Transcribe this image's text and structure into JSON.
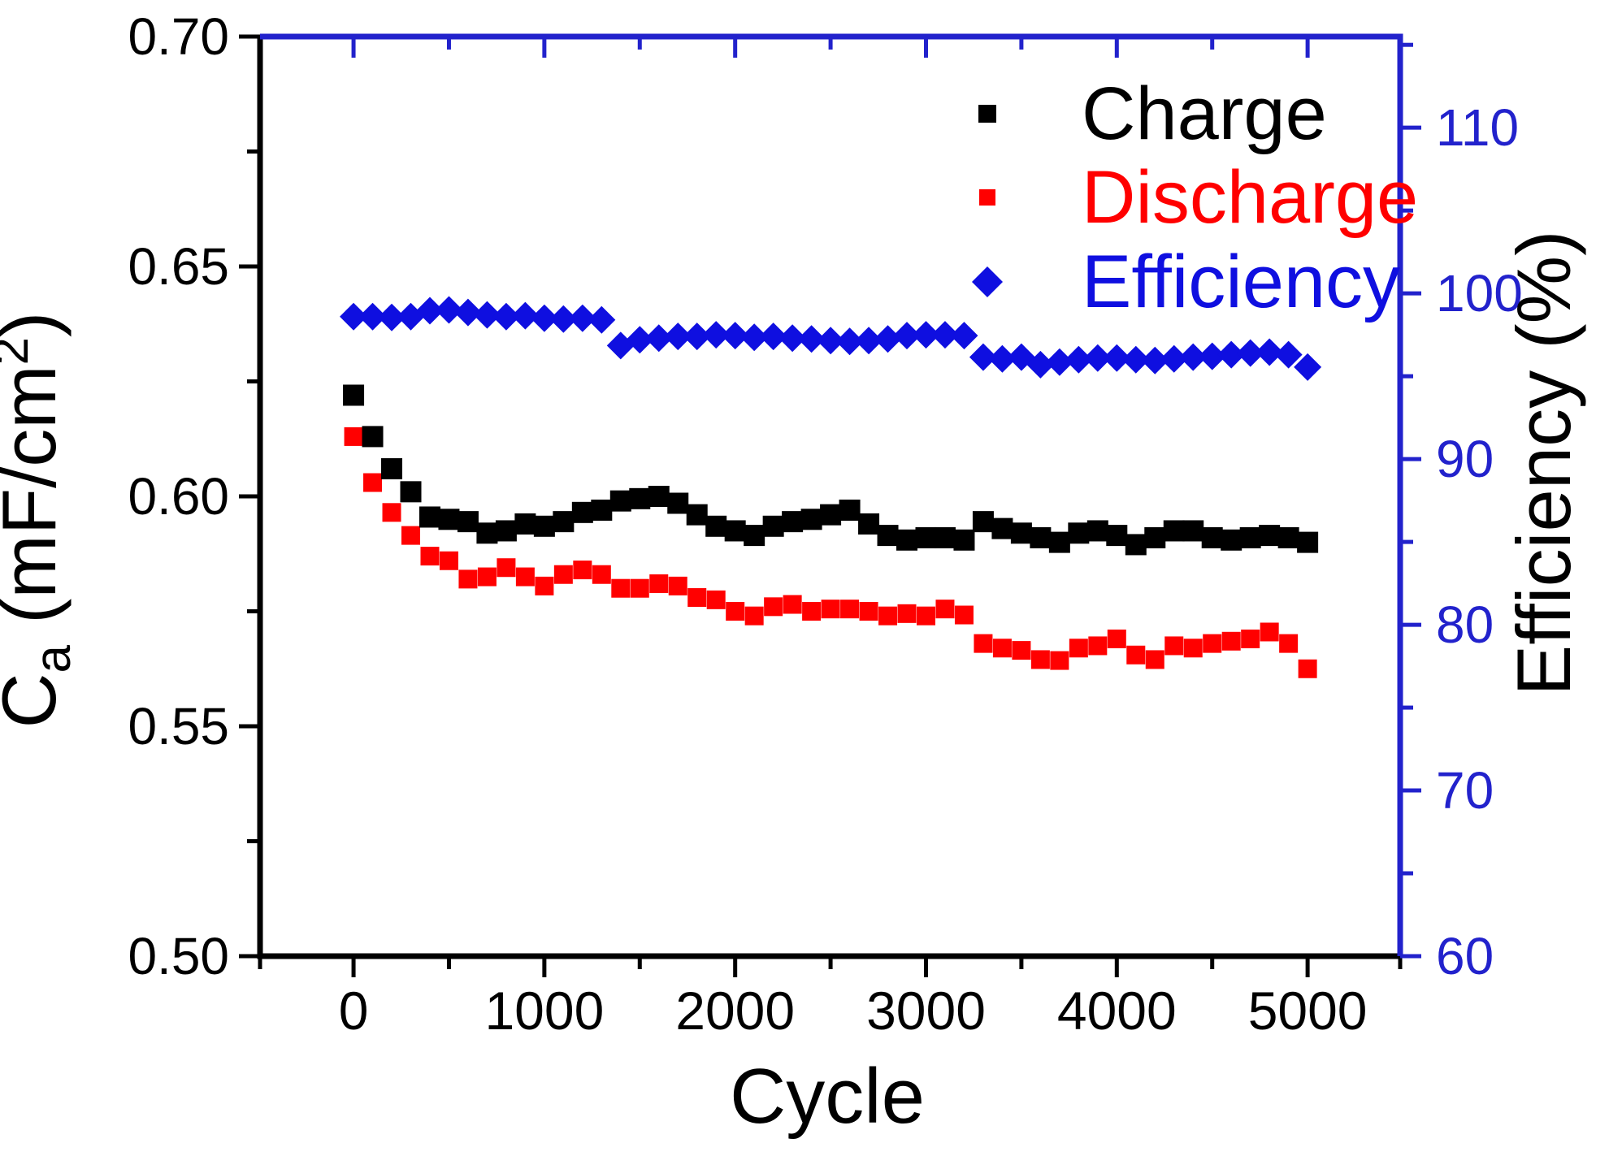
{
  "page": {
    "background": "#ffffff"
  },
  "legend": {
    "position": "top-right",
    "items": [
      {
        "label": "Charge",
        "color": "#000000",
        "marker": "square"
      },
      {
        "label": "Discharge",
        "color": "#ff0000",
        "marker": "square"
      },
      {
        "label": "Efficiency",
        "color": "#0f0fe0",
        "marker": "diamond"
      }
    ]
  },
  "chart_data": {
    "type": "scatter",
    "title": "",
    "xlabel": "Cycle",
    "ylabel_left": "Ca (mF/cm2)",
    "ylabel_left_parts": {
      "pre": "C",
      "sub": "a",
      "mid": " (mF/cm",
      "sup": "2",
      "post": ")"
    },
    "ylabel_right": "Efficiency (%)",
    "grid": false,
    "xlim": [
      -490,
      5485
    ],
    "ylim_left": [
      0.5,
      0.7
    ],
    "ylim_right": [
      60,
      115.5
    ],
    "axis_colors": {
      "left": "#000000",
      "bottom": "#000000",
      "top": "#2222cc",
      "right": "#2222cc"
    },
    "x_ticks": [
      {
        "v": 0,
        "label": "0"
      },
      {
        "v": 1000,
        "label": "1000"
      },
      {
        "v": 2000,
        "label": "2000"
      },
      {
        "v": 3000,
        "label": "3000"
      },
      {
        "v": 4000,
        "label": "4000"
      },
      {
        "v": 5000,
        "label": "5000"
      }
    ],
    "x_minor_ticks": [
      -490,
      500,
      1500,
      2500,
      3500,
      4500,
      5485
    ],
    "top_major_ticks": [
      0,
      1000,
      2000,
      3000,
      4000,
      5000
    ],
    "top_minor_ticks": [
      500,
      1500,
      2500,
      3500,
      4500
    ],
    "left_ticks": [
      {
        "v": 0.5,
        "label": "0.50"
      },
      {
        "v": 0.55,
        "label": "0.55"
      },
      {
        "v": 0.6,
        "label": "0.60"
      },
      {
        "v": 0.65,
        "label": "0.65"
      },
      {
        "v": 0.7,
        "label": "0.70"
      }
    ],
    "left_minor_ticks": [
      0.525,
      0.575,
      0.625,
      0.675
    ],
    "right_ticks": [
      {
        "v": 60,
        "label": "60"
      },
      {
        "v": 70,
        "label": "70"
      },
      {
        "v": 80,
        "label": "80"
      },
      {
        "v": 90,
        "label": "90"
      },
      {
        "v": 100,
        "label": "100"
      },
      {
        "v": 110,
        "label": "110"
      }
    ],
    "right_minor_ticks": [
      65,
      75,
      85,
      95,
      105,
      115
    ],
    "x": [
      0,
      100,
      200,
      300,
      400,
      500,
      600,
      700,
      800,
      900,
      1000,
      1100,
      1200,
      1300,
      1400,
      1500,
      1600,
      1700,
      1800,
      1900,
      2000,
      2100,
      2200,
      2300,
      2400,
      2500,
      2600,
      2700,
      2800,
      2900,
      3000,
      3100,
      3200,
      3300,
      3400,
      3500,
      3600,
      3700,
      3800,
      3900,
      4000,
      4100,
      4200,
      4300,
      4400,
      4500,
      4600,
      4700,
      4800,
      4900,
      5000
    ],
    "series": [
      {
        "name": "Charge",
        "axis": "left",
        "marker": "square",
        "color": "#000000",
        "values": [
          0.622,
          0.613,
          0.606,
          0.601,
          0.5955,
          0.595,
          0.5945,
          0.592,
          0.5925,
          0.594,
          0.5935,
          0.5945,
          0.5965,
          0.597,
          0.599,
          0.5995,
          0.6,
          0.5985,
          0.596,
          0.5935,
          0.5925,
          0.5915,
          0.5935,
          0.5945,
          0.595,
          0.596,
          0.597,
          0.594,
          0.5915,
          0.5905,
          0.591,
          0.591,
          0.5905,
          0.5945,
          0.593,
          0.592,
          0.591,
          0.59,
          0.592,
          0.5925,
          0.5915,
          0.5895,
          0.591,
          0.5925,
          0.5925,
          0.591,
          0.5905,
          0.591,
          0.5915,
          0.591,
          0.59
        ]
      },
      {
        "name": "Discharge",
        "axis": "left",
        "marker": "square",
        "color": "#ff0000",
        "values": [
          0.613,
          0.603,
          0.5965,
          0.5915,
          0.587,
          0.586,
          0.582,
          0.5825,
          0.5845,
          0.5825,
          0.5805,
          0.583,
          0.584,
          0.583,
          0.58,
          0.58,
          0.581,
          0.5805,
          0.578,
          0.5775,
          0.575,
          0.574,
          0.576,
          0.5765,
          0.575,
          0.5755,
          0.5755,
          0.575,
          0.574,
          0.5745,
          0.574,
          0.5755,
          0.5742,
          0.568,
          0.567,
          0.5665,
          0.5645,
          0.5643,
          0.567,
          0.5675,
          0.569,
          0.5655,
          0.5645,
          0.5675,
          0.567,
          0.568,
          0.5685,
          0.569,
          0.5705,
          0.568,
          0.5625
        ]
      },
      {
        "name": "Efficiency",
        "axis": "right",
        "marker": "diamond",
        "color": "#0f0fe0",
        "values": [
          98.6,
          98.6,
          98.55,
          98.6,
          98.95,
          99.0,
          98.85,
          98.7,
          98.6,
          98.65,
          98.5,
          98.45,
          98.5,
          98.4,
          96.85,
          97.2,
          97.3,
          97.4,
          97.4,
          97.5,
          97.45,
          97.35,
          97.4,
          97.3,
          97.25,
          97.15,
          97.1,
          97.15,
          97.25,
          97.45,
          97.5,
          97.5,
          97.45,
          96.15,
          96.05,
          96.15,
          95.7,
          95.85,
          96.0,
          96.1,
          96.1,
          96.0,
          95.95,
          96.05,
          96.15,
          96.2,
          96.3,
          96.4,
          96.45,
          96.3,
          95.55
        ]
      }
    ]
  }
}
